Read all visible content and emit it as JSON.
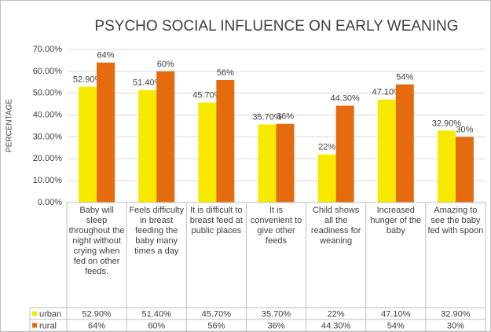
{
  "chart_data": {
    "type": "bar",
    "title": "PSYCHO SOCIAL INFLUENCE ON EARLY WEANING",
    "ylabel": "PERCENTAGE",
    "categories": [
      "Baby will sleep throughout the night without crying when fed on other feeds.",
      "Feels difficulty in breast feeding the baby many times a day",
      "It is difficult to breast feed at public places",
      "It is convenient to give other feeds",
      "Child shows all the readiness for weaning",
      "Increased hunger of the baby",
      "Amazing to see the baby fed with spoon"
    ],
    "series": [
      {
        "name": "urban",
        "color": "#f7ea00",
        "values": [
          52.9,
          51.4,
          45.7,
          35.7,
          22,
          47.1,
          32.9
        ],
        "value_labels": [
          "52.90%",
          "51.40%",
          "45.70%",
          "35.70%",
          "22%",
          "47.10%",
          "32.90%"
        ]
      },
      {
        "name": "rural",
        "color": "#e56b0f",
        "values": [
          64,
          60,
          56,
          36,
          44.3,
          54,
          30
        ],
        "value_labels": [
          "64%",
          "60%",
          "56%",
          "36%",
          "44.30%",
          "54%",
          "30%"
        ]
      }
    ],
    "ylim": [
      0,
      70
    ],
    "yticks": [
      {
        "value": 0,
        "label": "0.00%"
      },
      {
        "value": 10,
        "label": "10.00%"
      },
      {
        "value": 20,
        "label": "20.00%"
      },
      {
        "value": 30,
        "label": "30.00%"
      },
      {
        "value": 40,
        "label": "40.00%"
      },
      {
        "value": 50,
        "label": "50.00%"
      },
      {
        "value": 60,
        "label": "60.00%"
      },
      {
        "value": 70,
        "label": "70.00%"
      }
    ],
    "grid": true
  }
}
